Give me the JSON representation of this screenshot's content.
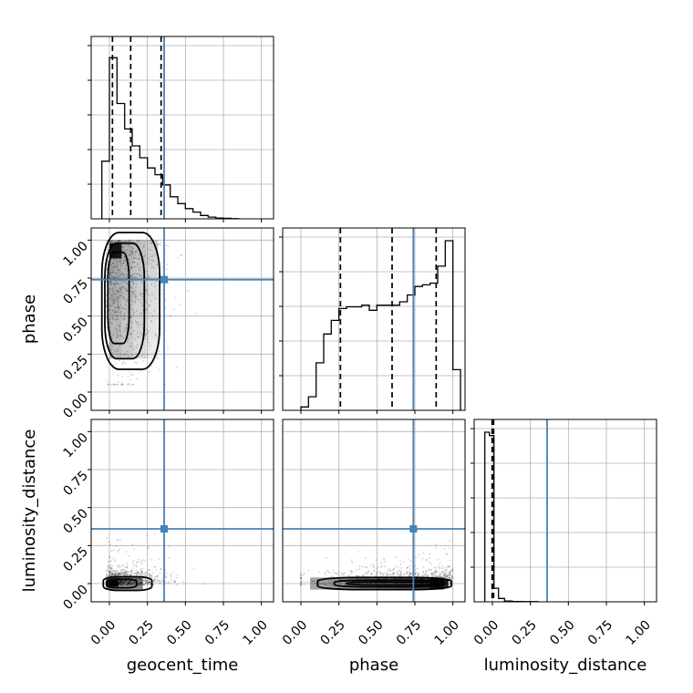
{
  "chart_data": {
    "type": "corner",
    "parameters": [
      "geocent_time",
      "phase",
      "luminosity_distance"
    ],
    "axis_range": [
      -0.12,
      1.08
    ],
    "ticks": [
      0.0,
      0.25,
      0.5,
      0.75,
      1.0
    ],
    "tick_labels": [
      "0.00",
      "0.25",
      "0.50",
      "0.75",
      "1.00"
    ],
    "grid": true,
    "truth": {
      "geocent_time": 0.36,
      "phase": 0.74,
      "luminosity_distance": 0.36
    },
    "colors": {
      "truth": "#4682b4",
      "histogram": "#000000",
      "grid": "#b0b0b0"
    },
    "histograms": {
      "geocent_time": {
        "bin_edges": [
          -0.05,
          0.0,
          0.05,
          0.1,
          0.15,
          0.2,
          0.25,
          0.3,
          0.35,
          0.4,
          0.45,
          0.5,
          0.55,
          0.6,
          0.65,
          0.7,
          0.75,
          0.8,
          0.85
        ],
        "counts": [
          0.34,
          0.95,
          0.68,
          0.53,
          0.43,
          0.36,
          0.3,
          0.26,
          0.2,
          0.13,
          0.09,
          0.06,
          0.04,
          0.02,
          0.01,
          0.005,
          0.003,
          0.001
        ],
        "quantiles": [
          0.02,
          0.14,
          0.34
        ]
      },
      "phase": {
        "bin_edges": [
          0.0,
          0.05,
          0.1,
          0.15,
          0.2,
          0.25,
          0.3,
          0.35,
          0.4,
          0.45,
          0.5,
          0.55,
          0.6,
          0.65,
          0.7,
          0.75,
          0.8,
          0.85,
          0.9,
          0.95,
          1.0,
          1.05
        ],
        "counts": [
          0.02,
          0.08,
          0.28,
          0.45,
          0.53,
          0.6,
          0.61,
          0.61,
          0.62,
          0.59,
          0.62,
          0.62,
          0.62,
          0.64,
          0.68,
          0.73,
          0.74,
          0.75,
          0.85,
          1.0,
          0.24
        ],
        "quantiles": [
          0.26,
          0.6,
          0.89
        ]
      },
      "luminosity_distance": {
        "bin_edges": [
          -0.05,
          -0.02,
          0.01,
          0.04,
          0.08,
          0.13,
          0.2,
          0.3
        ],
        "counts": [
          1.0,
          0.98,
          0.08,
          0.02,
          0.005,
          0.002,
          0.001
        ],
        "quantiles": [
          -0.002,
          0.003,
          0.008
        ]
      }
    },
    "pairs": [
      {
        "x": "geocent_time",
        "y": "phase"
      },
      {
        "x": "geocent_time",
        "y": "luminosity_distance"
      },
      {
        "x": "phase",
        "y": "luminosity_distance"
      }
    ]
  }
}
